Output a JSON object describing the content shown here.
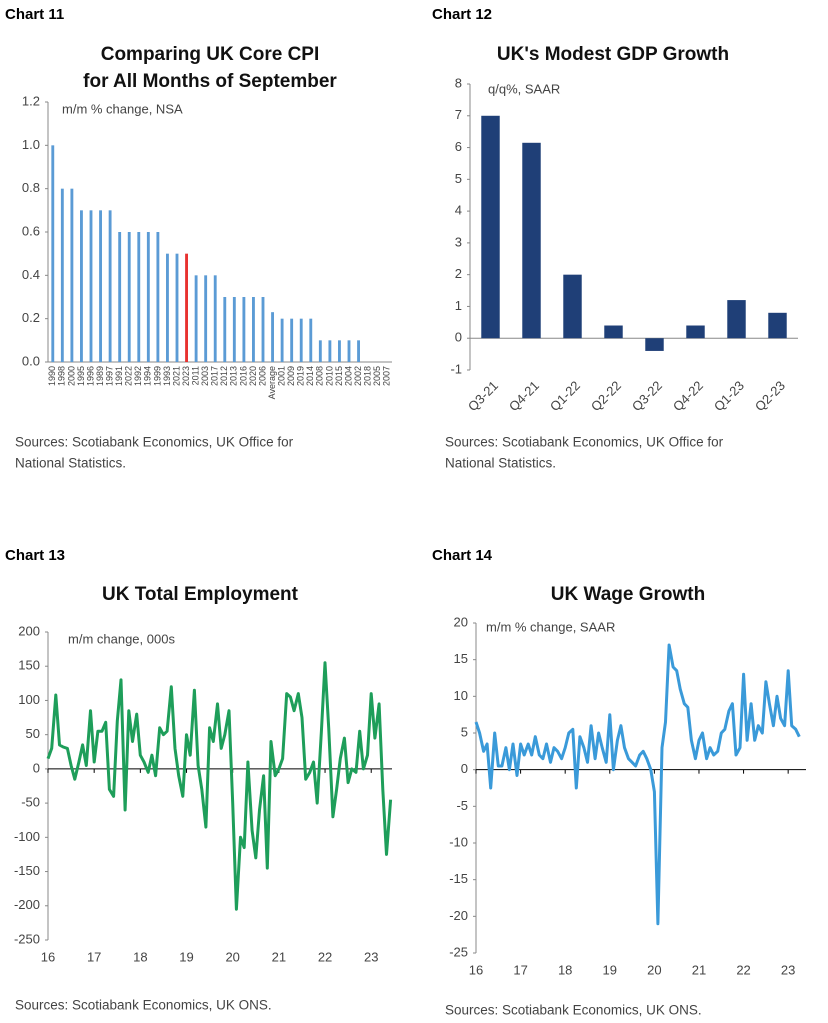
{
  "chart_data": [
    {
      "label": "Chart 11",
      "type": "bar",
      "title": [
        "Comparing UK Core CPI",
        "for All Months of September"
      ],
      "subtitle": "m/m % change, NSA",
      "source": [
        "Sources: Scotiabank Economics, UK Office for",
        "National Statistics."
      ],
      "categories": [
        "1990",
        "1998",
        "2000",
        "1995",
        "1996",
        "1989",
        "1997",
        "1991",
        "2022",
        "1992",
        "1994",
        "1999",
        "1993",
        "2021",
        "2023",
        "2011",
        "2003",
        "2017",
        "2012",
        "2013",
        "2016",
        "2020",
        "2006",
        "Average",
        "2001",
        "2009",
        "2019",
        "2014",
        "2008",
        "2010",
        "2015",
        "2004",
        "2002",
        "2018",
        "2005",
        "2007"
      ],
      "values": [
        1.0,
        0.8,
        0.8,
        0.7,
        0.7,
        0.7,
        0.7,
        0.6,
        0.6,
        0.6,
        0.6,
        0.6,
        0.5,
        0.5,
        0.5,
        0.4,
        0.4,
        0.4,
        0.3,
        0.3,
        0.3,
        0.3,
        0.3,
        0.23,
        0.2,
        0.2,
        0.2,
        0.2,
        0.1,
        0.1,
        0.1,
        0.1,
        0.1,
        0.0,
        0.0,
        0.0
      ],
      "colors": [
        "#5b9bd5",
        "#5b9bd5",
        "#5b9bd5",
        "#5b9bd5",
        "#5b9bd5",
        "#5b9bd5",
        "#5b9bd5",
        "#5b9bd5",
        "#5b9bd5",
        "#5b9bd5",
        "#5b9bd5",
        "#5b9bd5",
        "#5b9bd5",
        "#5b9bd5",
        "#e8312f",
        "#5b9bd5",
        "#5b9bd5",
        "#5b9bd5",
        "#5b9bd5",
        "#5b9bd5",
        "#5b9bd5",
        "#5b9bd5",
        "#5b9bd5",
        "#5b9bd5",
        "#5b9bd5",
        "#5b9bd5",
        "#5b9bd5",
        "#5b9bd5",
        "#5b9bd5",
        "#5b9bd5",
        "#5b9bd5",
        "#5b9bd5",
        "#5b9bd5",
        "#5b9bd5",
        "#5b9bd5",
        "#5b9bd5"
      ],
      "ylim": [
        0,
        1.2
      ],
      "yticks": [
        {
          "value": 0,
          "label": "0.0"
        },
        0.2,
        0.4,
        0.6,
        0.8,
        {
          "value": 1,
          "label": "1.0"
        },
        1.2
      ]
    },
    {
      "label": "Chart 12",
      "type": "bar",
      "title": [
        "UK's Modest GDP Growth"
      ],
      "subtitle": "q/q%, SAAR",
      "source": [
        "Sources: Scotiabank Economics, UK Office for",
        "National Statistics."
      ],
      "categories": [
        "Q3-21",
        "Q4-21",
        "Q1-22",
        "Q2-22",
        "Q3-22",
        "Q4-22",
        "Q1-23",
        "Q2-23"
      ],
      "values": [
        7.0,
        6.15,
        2.0,
        0.4,
        -0.4,
        0.4,
        1.2,
        0.8
      ],
      "color": "#1f3f77",
      "ylim": [
        -1,
        8
      ],
      "yticks": [
        -1,
        0,
        1,
        2,
        3,
        4,
        5,
        6,
        7,
        8
      ]
    },
    {
      "label": "Chart 13",
      "type": "line",
      "title": [
        "UK Total Employment"
      ],
      "subtitle": "m/m change, 000s",
      "source": [
        "Sources: Scotiabank Economics, UK ONS."
      ],
      "color": "#1e9e5a",
      "x": [
        2016,
        2016.08,
        2016.17,
        2016.25,
        2016.33,
        2016.42,
        2016.5,
        2016.58,
        2016.67,
        2016.75,
        2016.83,
        2016.92,
        2017,
        2017.08,
        2017.17,
        2017.25,
        2017.33,
        2017.42,
        2017.5,
        2017.58,
        2017.67,
        2017.75,
        2017.83,
        2017.92,
        2018,
        2018.08,
        2018.17,
        2018.25,
        2018.33,
        2018.42,
        2018.5,
        2018.58,
        2018.67,
        2018.75,
        2018.83,
        2018.92,
        2019,
        2019.08,
        2019.17,
        2019.25,
        2019.33,
        2019.42,
        2019.5,
        2019.58,
        2019.67,
        2019.75,
        2019.83,
        2019.92,
        2020,
        2020.08,
        2020.17,
        2020.25,
        2020.33,
        2020.42,
        2020.5,
        2020.58,
        2020.67,
        2020.75,
        2020.83,
        2020.92,
        2021,
        2021.08,
        2021.17,
        2021.25,
        2021.33,
        2021.42,
        2021.5,
        2021.58,
        2021.67,
        2021.75,
        2021.83,
        2021.92,
        2022,
        2022.08,
        2022.17,
        2022.25,
        2022.33,
        2022.42,
        2022.5,
        2022.58,
        2022.67,
        2022.75,
        2022.83,
        2022.92,
        2023,
        2023.08,
        2023.17,
        2023.25,
        2023.33,
        2023.42
      ],
      "values": [
        15,
        30,
        108,
        35,
        32,
        30,
        5,
        -15,
        10,
        35,
        5,
        85,
        10,
        55,
        55,
        68,
        -30,
        -40,
        70,
        130,
        -60,
        85,
        40,
        80,
        20,
        10,
        -5,
        20,
        -10,
        60,
        50,
        55,
        120,
        30,
        -10,
        -40,
        50,
        20,
        115,
        5,
        -30,
        -85,
        60,
        40,
        95,
        30,
        50,
        85,
        -50,
        -205,
        -100,
        -115,
        10,
        -90,
        -130,
        -60,
        -10,
        -145,
        40,
        -10,
        0,
        15,
        110,
        105,
        85,
        110,
        75,
        -15,
        -5,
        10,
        -50,
        55,
        155,
        60,
        -70,
        -30,
        15,
        45,
        -20,
        0,
        -5,
        55,
        0,
        20,
        110,
        45,
        95,
        -30,
        -125,
        -45
      ],
      "xlim": [
        2016,
        2023.45
      ],
      "xticks": [
        {
          "value": 2016,
          "label": "16"
        },
        {
          "value": 2017,
          "label": "17"
        },
        {
          "value": 2018,
          "label": "18"
        },
        {
          "value": 2019,
          "label": "19"
        },
        {
          "value": 2020,
          "label": "20"
        },
        {
          "value": 2021,
          "label": "21"
        },
        {
          "value": 2022,
          "label": "22"
        },
        {
          "value": 2023,
          "label": "23"
        }
      ],
      "ylim": [
        -250,
        200
      ],
      "yticks": [
        -250,
        -200,
        -150,
        -100,
        -50,
        0,
        50,
        100,
        150,
        200
      ]
    },
    {
      "label": "Chart 14",
      "type": "line",
      "title": [
        "UK Wage Growth"
      ],
      "subtitle": "m/m % change, SAAR",
      "source": [
        "Sources: Scotiabank Economics, UK ONS."
      ],
      "color": "#3a9ad9",
      "x": [
        2016,
        2016.08,
        2016.17,
        2016.25,
        2016.33,
        2016.42,
        2016.5,
        2016.58,
        2016.67,
        2016.75,
        2016.83,
        2016.92,
        2017,
        2017.08,
        2017.17,
        2017.25,
        2017.33,
        2017.42,
        2017.5,
        2017.58,
        2017.67,
        2017.75,
        2017.83,
        2017.92,
        2018,
        2018.08,
        2018.17,
        2018.25,
        2018.33,
        2018.42,
        2018.5,
        2018.58,
        2018.67,
        2018.75,
        2018.83,
        2018.92,
        2019,
        2019.08,
        2019.17,
        2019.25,
        2019.33,
        2019.42,
        2019.5,
        2019.58,
        2019.67,
        2019.75,
        2019.83,
        2019.92,
        2020,
        2020.08,
        2020.17,
        2020.25,
        2020.33,
        2020.42,
        2020.5,
        2020.58,
        2020.67,
        2020.75,
        2020.83,
        2020.92,
        2021,
        2021.08,
        2021.17,
        2021.25,
        2021.33,
        2021.42,
        2021.5,
        2021.58,
        2021.67,
        2021.75,
        2021.83,
        2021.92,
        2022,
        2022.08,
        2022.17,
        2022.25,
        2022.33,
        2022.42,
        2022.5,
        2022.58,
        2022.67,
        2022.75,
        2022.83,
        2022.92,
        2023,
        2023.08,
        2023.17,
        2023.25
      ],
      "values": [
        6.5,
        5,
        2.5,
        3.5,
        -2.5,
        5,
        0.5,
        0.5,
        3,
        0,
        3.5,
        -0.8,
        3.5,
        2,
        3.5,
        2,
        4.5,
        2,
        1.5,
        3.5,
        1,
        3,
        2.5,
        1.5,
        3,
        5,
        5.5,
        -2.5,
        4.5,
        3,
        1,
        6,
        1.5,
        5,
        3,
        1,
        7.5,
        0,
        4,
        6,
        3,
        1.5,
        1,
        0.5,
        2,
        2.5,
        1.5,
        0,
        -3,
        -21,
        3,
        6.5,
        17,
        14,
        13.5,
        11,
        9,
        8.5,
        4,
        1.5,
        4,
        5,
        1.5,
        3,
        2,
        2.5,
        5,
        5.5,
        8,
        9,
        2,
        3,
        13,
        4,
        9,
        4,
        6,
        5,
        12,
        9,
        6,
        10,
        7,
        6,
        13.5,
        6,
        5.5,
        4.5
      ],
      "xlim": [
        2016,
        2023.4
      ],
      "xticks": [
        {
          "value": 2016,
          "label": "16"
        },
        {
          "value": 2017,
          "label": "17"
        },
        {
          "value": 2018,
          "label": "18"
        },
        {
          "value": 2019,
          "label": "19"
        },
        {
          "value": 2020,
          "label": "20"
        },
        {
          "value": 2021,
          "label": "21"
        },
        {
          "value": 2022,
          "label": "22"
        },
        {
          "value": 2023,
          "label": "23"
        }
      ],
      "ylim": [
        -25,
        20
      ],
      "yticks": [
        -25,
        -20,
        -15,
        -10,
        -5,
        0,
        5,
        10,
        15,
        20
      ]
    }
  ]
}
